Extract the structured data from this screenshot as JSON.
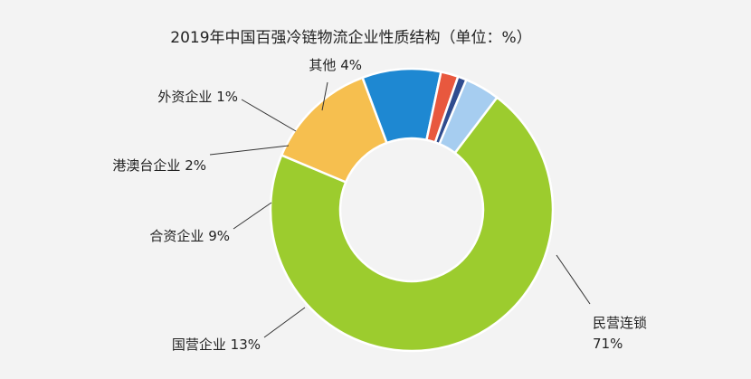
{
  "chart_data": {
    "type": "pie",
    "title": "2019年中国百强冷链物流企业性质结构（单位：%）",
    "donut": true,
    "slices": [
      {
        "name": "民营连锁",
        "value": 71,
        "value_label": "71%",
        "color": "#9ccc2e"
      },
      {
        "name": "国营企业",
        "value": 13,
        "value_label": "13%",
        "color": "#f6bf4f"
      },
      {
        "name": "合资企业",
        "value": 9,
        "value_label": "9%",
        "color": "#1e88d2"
      },
      {
        "name": "港澳台企业",
        "value": 2,
        "value_label": "2%",
        "color": "#e8583e"
      },
      {
        "name": "外资企业",
        "value": 1,
        "value_label": "1%",
        "color": "#2f4c8f"
      },
      {
        "name": "其他",
        "value": 4,
        "value_label": "4%",
        "color": "#a6cdf0"
      }
    ]
  }
}
